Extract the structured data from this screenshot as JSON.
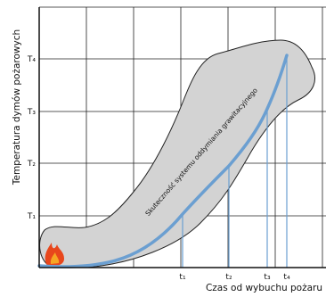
{
  "y_axis_label": "Temperatura dymów pożarowych",
  "x_axis_label": "Czas od wybuchu pożaru",
  "band_label": "Skuteczność systemu oddymiania grawitacyjnego",
  "temperature_levels": [
    "T₄",
    "T₃",
    "T₂",
    "T₁"
  ],
  "time_marks": [
    "t₁",
    "t₂",
    "t₃",
    "t₄"
  ]
}
